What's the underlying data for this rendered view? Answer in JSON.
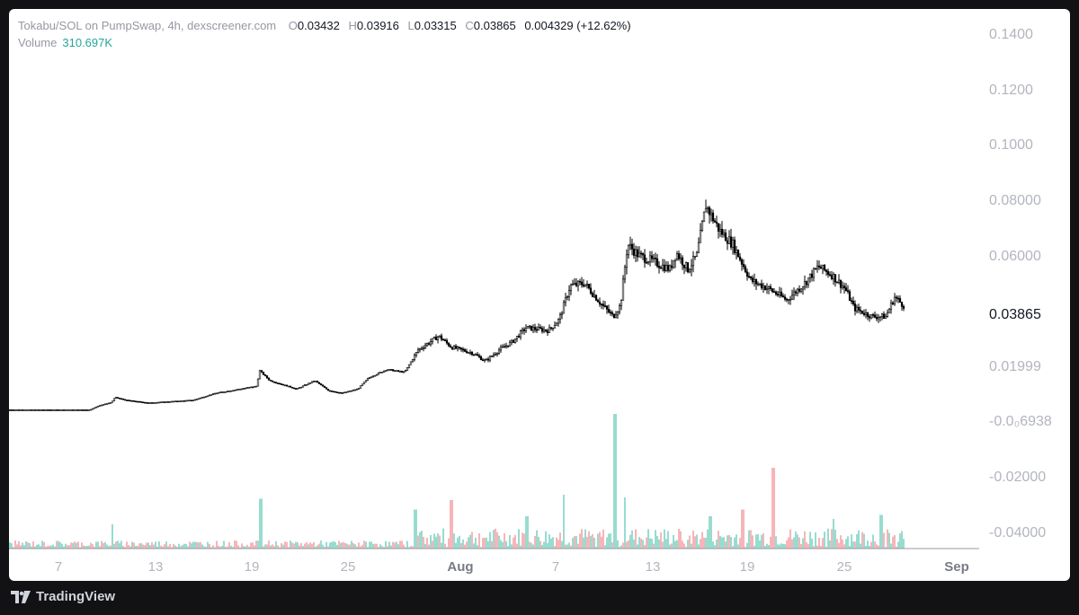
{
  "legend": {
    "symbol": "Tokabu/SOL on PumpSwap, 4h, dexscreener.com",
    "open_label": "O",
    "open": "0.03432",
    "high_label": "H",
    "high": "0.03916",
    "low_label": "L",
    "low": "0.03315",
    "close_label": "C",
    "close": "0.03865",
    "change": "0.004329 (+12.62%)",
    "volume_label": "Volume",
    "volume": "310.697K"
  },
  "footer": {
    "brand": "TradingView"
  },
  "colors": {
    "candle": "#000000",
    "volume_up": "#7fd3c4",
    "volume_down": "#f5a3a8",
    "axis_text": "#b2b5be",
    "last_price_text": "#131722",
    "volume_value": "#26a69a"
  },
  "chart_data": {
    "type": "candlestick",
    "interval": "4h",
    "y_axis": {
      "labels": [
        "0.1400",
        "0.1200",
        "0.1000",
        "0.08000",
        "0.06000",
        "0.03865",
        "0.01999",
        "-0.0₀6938",
        "-0.02000",
        "-0.04000"
      ],
      "last_price": "0.03865"
    },
    "x_axis": {
      "ticks": [
        "7",
        "13",
        "19",
        "25",
        "Aug",
        "7",
        "13",
        "19",
        "25",
        "Sep"
      ]
    },
    "price_path": [
      [
        0,
        0.0005
      ],
      [
        90,
        0.0005
      ],
      [
        100,
        0.002
      ],
      [
        114,
        0.0032
      ],
      [
        118,
        0.005
      ],
      [
        130,
        0.004
      ],
      [
        155,
        0.003
      ],
      [
        205,
        0.004
      ],
      [
        230,
        0.0065
      ],
      [
        275,
        0.009
      ],
      [
        279,
        0.0145
      ],
      [
        290,
        0.011
      ],
      [
        320,
        0.008
      ],
      [
        340,
        0.011
      ],
      [
        355,
        0.0075
      ],
      [
        370,
        0.0065
      ],
      [
        388,
        0.008
      ],
      [
        400,
        0.012
      ],
      [
        420,
        0.015
      ],
      [
        440,
        0.014
      ],
      [
        455,
        0.022
      ],
      [
        478,
        0.027
      ],
      [
        492,
        0.023
      ],
      [
        515,
        0.021
      ],
      [
        530,
        0.018
      ],
      [
        545,
        0.022
      ],
      [
        560,
        0.025
      ],
      [
        575,
        0.03
      ],
      [
        600,
        0.029
      ],
      [
        612,
        0.033
      ],
      [
        624,
        0.045
      ],
      [
        640,
        0.046
      ],
      [
        660,
        0.038
      ],
      [
        672,
        0.034
      ],
      [
        680,
        0.038
      ],
      [
        688,
        0.06
      ],
      [
        700,
        0.056
      ],
      [
        715,
        0.054
      ],
      [
        735,
        0.051
      ],
      [
        742,
        0.057
      ],
      [
        755,
        0.051
      ],
      [
        765,
        0.056
      ],
      [
        775,
        0.074
      ],
      [
        790,
        0.065
      ],
      [
        805,
        0.06
      ],
      [
        825,
        0.047
      ],
      [
        845,
        0.044
      ],
      [
        865,
        0.04
      ],
      [
        885,
        0.046
      ],
      [
        900,
        0.052
      ],
      [
        915,
        0.049
      ],
      [
        930,
        0.044
      ],
      [
        940,
        0.037
      ],
      [
        960,
        0.034
      ],
      [
        975,
        0.034
      ],
      [
        985,
        0.041
      ],
      [
        995,
        0.038
      ]
    ],
    "volume_spikes": [
      [
        115,
        0.18,
        "up"
      ],
      [
        280,
        0.37,
        "up"
      ],
      [
        452,
        0.29,
        "up"
      ],
      [
        492,
        0.36,
        "down"
      ],
      [
        576,
        0.24,
        "up"
      ],
      [
        617,
        0.4,
        "up"
      ],
      [
        674,
        1.0,
        "up"
      ],
      [
        685,
        0.38,
        "up"
      ],
      [
        780,
        0.24,
        "up"
      ],
      [
        816,
        0.29,
        "down"
      ],
      [
        850,
        0.6,
        "down"
      ],
      [
        917,
        0.22,
        "up"
      ],
      [
        970,
        0.25,
        "up"
      ]
    ]
  }
}
